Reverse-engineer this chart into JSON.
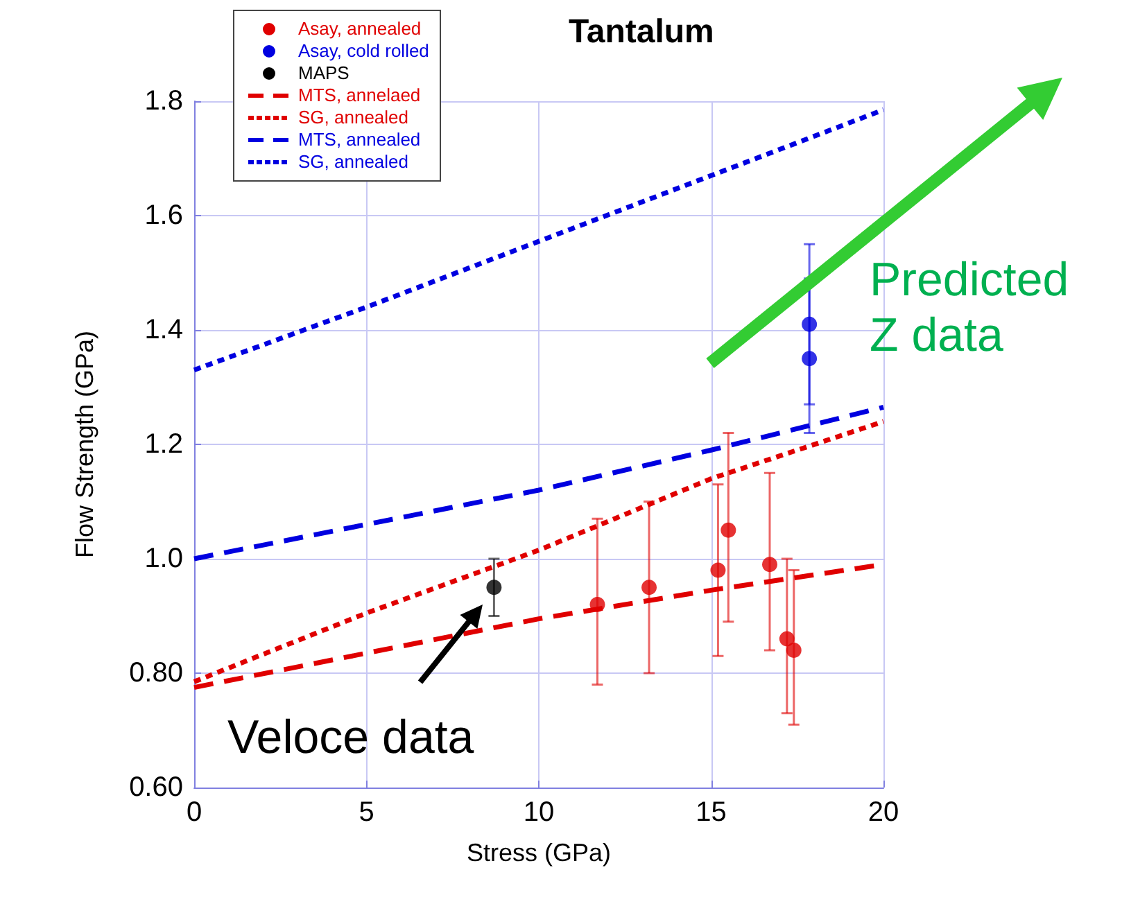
{
  "chart_data": {
    "type": "line",
    "title": "Tantalum",
    "xlabel": "Stress (GPa)",
    "ylabel": "Flow Strength (GPa)",
    "xlim": [
      0,
      20
    ],
    "xticks": [
      0,
      5,
      10,
      15,
      20
    ],
    "ylim": [
      0.6,
      1.8
    ],
    "yticks": [
      {
        "value": 0.6,
        "label": "0.60"
      },
      {
        "value": 0.8,
        "label": "0.80"
      },
      {
        "value": 1,
        "label": "1.0"
      },
      1.2,
      1.4,
      1.6,
      1.8
    ],
    "grid": true,
    "legend": "top left",
    "series": [
      {
        "name": "Asay, annealed",
        "type": "scatter",
        "marker": "circle",
        "color": "#e00000",
        "x": [
          11.7,
          13.2,
          15.2,
          15.5,
          16.7,
          17.2,
          17.4
        ],
        "values": [
          0.92,
          0.95,
          0.98,
          1.05,
          0.99,
          0.86,
          0.84
        ],
        "errors": [
          [
            0.78,
            1.07
          ],
          [
            0.8,
            1.1
          ],
          [
            0.83,
            1.13
          ],
          [
            0.89,
            1.22
          ],
          [
            0.84,
            1.15
          ],
          [
            0.73,
            1.0
          ],
          [
            0.71,
            0.98
          ]
        ]
      },
      {
        "name": "Asay, cold rolled",
        "type": "scatter",
        "marker": "circle",
        "color": "#0000e0",
        "x": [
          17.85,
          17.85
        ],
        "values": [
          1.41,
          1.35
        ],
        "errors": [
          [
            1.27,
            1.55
          ],
          [
            1.22,
            1.49
          ]
        ]
      },
      {
        "name": "MAPS",
        "type": "scatter",
        "marker": "circle",
        "color": "#000000",
        "x": [
          8.7
        ],
        "values": [
          0.95
        ],
        "errors": [
          [
            0.9,
            1.0
          ]
        ]
      },
      {
        "name": "MTS, annelaed",
        "marker": "none",
        "line_style": "dashed",
        "color": "#e00000",
        "x": [
          0,
          5,
          10,
          15,
          20
        ],
        "values": [
          0.775,
          0.835,
          0.895,
          0.945,
          0.99
        ]
      },
      {
        "name": "SG, annealed",
        "marker": "none",
        "line_style": "dotted",
        "color": "#e00000",
        "x": [
          0,
          5,
          10,
          15,
          20
        ],
        "values": [
          0.785,
          0.905,
          1.015,
          1.14,
          1.24
        ]
      },
      {
        "name": "MTS, annealed",
        "marker": "none",
        "line_style": "dashed",
        "color": "#0000e0",
        "x": [
          0,
          5,
          10,
          15,
          20
        ],
        "values": [
          1.0,
          1.06,
          1.12,
          1.19,
          1.265
        ]
      },
      {
        "name": "SG, annealed",
        "marker": "none",
        "line_style": "dotted",
        "color": "#0000e0",
        "x": [
          0,
          5,
          10,
          15,
          20
        ],
        "values": [
          1.33,
          1.44,
          1.555,
          1.67,
          1.785
        ]
      }
    ],
    "annotations": [
      "Veloce data",
      "Predicted Z data"
    ]
  }
}
